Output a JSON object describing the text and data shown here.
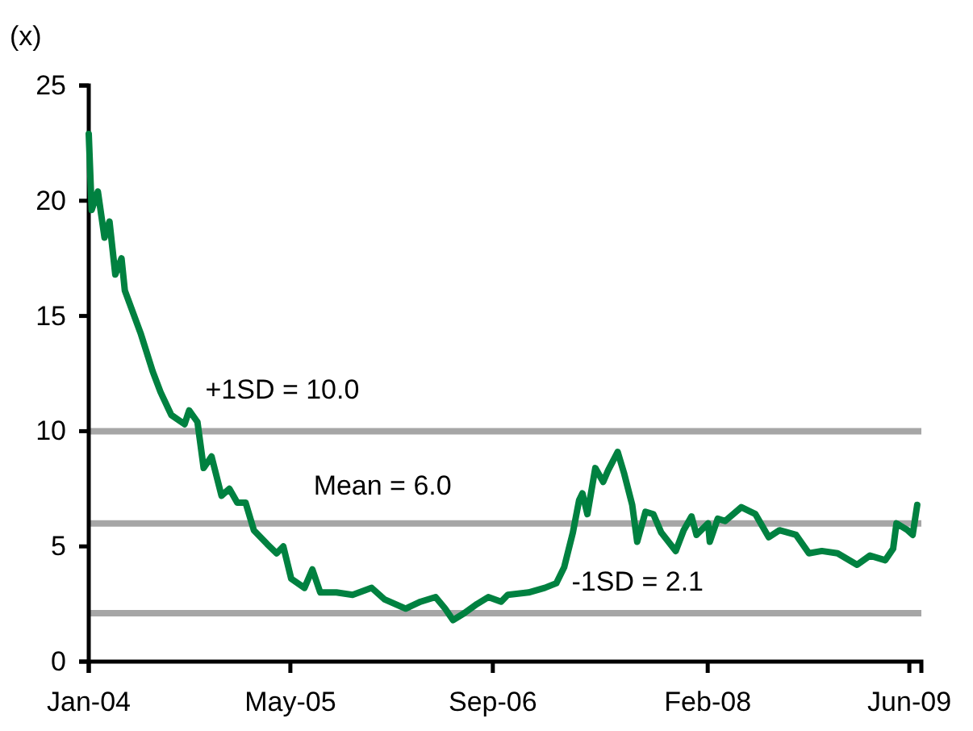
{
  "chart_data": {
    "type": "line",
    "ylabel": "(x)",
    "xlim": [
      "2004-01-01",
      "2009-06-30"
    ],
    "xticks": [
      {
        "value": "2004-01-01",
        "label": "Jan-04"
      },
      {
        "value": "2005-05-01",
        "label": "May-05"
      },
      {
        "value": "2006-09-01",
        "label": "Sep-06"
      },
      {
        "value": "2008-02-01",
        "label": "Feb-08"
      },
      {
        "value": "2009-06-01",
        "label": "Jun-09"
      }
    ],
    "ylim": [
      0,
      25
    ],
    "yticks": [
      0,
      5,
      10,
      15,
      20,
      25
    ],
    "grid": false,
    "ref_lines": [
      {
        "axis": "y",
        "value": 10.0,
        "label": "+1SD = 10.0",
        "color": "#a6a6a6"
      },
      {
        "axis": "y",
        "value": 6.0,
        "label": "Mean = 6.0",
        "color": "#a6a6a6"
      },
      {
        "axis": "y",
        "value": 2.1,
        "label": "-1SD = 2.1",
        "color": "#a6a6a6"
      }
    ],
    "series": [
      {
        "color": "#008140",
        "x": [
          "2004-01-01",
          "2004-01-08",
          "2004-01-23",
          "2004-02-08",
          "2004-02-20",
          "2004-03-05",
          "2004-03-20",
          "2004-03-28",
          "2004-05-06",
          "2004-06-03",
          "2004-06-22",
          "2004-07-18",
          "2004-08-19",
          "2004-08-30",
          "2004-09-19",
          "2004-10-04",
          "2004-10-23",
          "2004-11-16",
          "2004-12-05",
          "2004-12-24",
          "2005-01-13",
          "2005-02-02",
          "2005-03-06",
          "2005-03-29",
          "2005-04-14",
          "2005-05-03",
          "2005-06-04",
          "2005-06-23",
          "2005-07-12",
          "2005-08-20",
          "2005-09-28",
          "2005-11-13",
          "2005-12-14",
          "2006-02-03",
          "2006-03-11",
          "2006-04-16",
          "2006-05-09",
          "2006-05-28",
          "2006-06-24",
          "2006-07-25",
          "2006-08-21",
          "2006-09-21",
          "2006-10-07",
          "2006-11-26",
          "2007-01-04",
          "2007-02-01",
          "2007-02-20",
          "2007-03-13",
          "2007-03-28",
          "2007-04-05",
          "2007-04-17",
          "2007-05-06",
          "2007-05-25",
          "2007-06-06",
          "2007-06-29",
          "2007-07-14",
          "2007-08-03",
          "2007-08-15",
          "2007-09-04",
          "2007-09-23",
          "2007-10-12",
          "2007-11-16",
          "2007-12-05",
          "2007-12-24",
          "2008-01-05",
          "2008-02-02",
          "2008-02-06",
          "2008-02-25",
          "2008-03-14",
          "2008-04-22",
          "2008-05-26",
          "2008-06-27",
          "2008-07-23",
          "2008-09-01",
          "2008-10-02",
          "2008-11-02",
          "2008-12-10",
          "2009-01-26",
          "2009-02-26",
          "2009-04-04",
          "2009-04-23",
          "2009-05-01",
          "2009-05-28",
          "2009-06-09",
          "2009-06-20"
        ],
        "values": [
          22.9,
          19.6,
          20.4,
          18.4,
          19.1,
          16.8,
          17.5,
          16.1,
          14.2,
          12.6,
          11.7,
          10.7,
          10.3,
          10.9,
          10.4,
          8.4,
          8.9,
          7.2,
          7.5,
          6.9,
          6.9,
          5.7,
          5.1,
          4.7,
          5.0,
          3.6,
          3.2,
          4.0,
          3.0,
          3.0,
          2.9,
          3.2,
          2.7,
          2.3,
          2.6,
          2.8,
          2.3,
          1.8,
          2.1,
          2.5,
          2.8,
          2.6,
          2.9,
          3.0,
          3.2,
          3.4,
          4.1,
          5.6,
          7.0,
          7.3,
          6.4,
          8.4,
          7.8,
          8.3,
          9.1,
          8.2,
          6.8,
          5.2,
          6.5,
          6.4,
          5.6,
          4.8,
          5.7,
          6.3,
          5.5,
          6.0,
          5.2,
          6.2,
          6.1,
          6.7,
          6.4,
          5.4,
          5.7,
          5.5,
          4.7,
          4.8,
          4.7,
          4.2,
          4.6,
          4.4,
          4.9,
          6.0,
          5.7,
          5.5,
          6.8
        ]
      }
    ]
  }
}
